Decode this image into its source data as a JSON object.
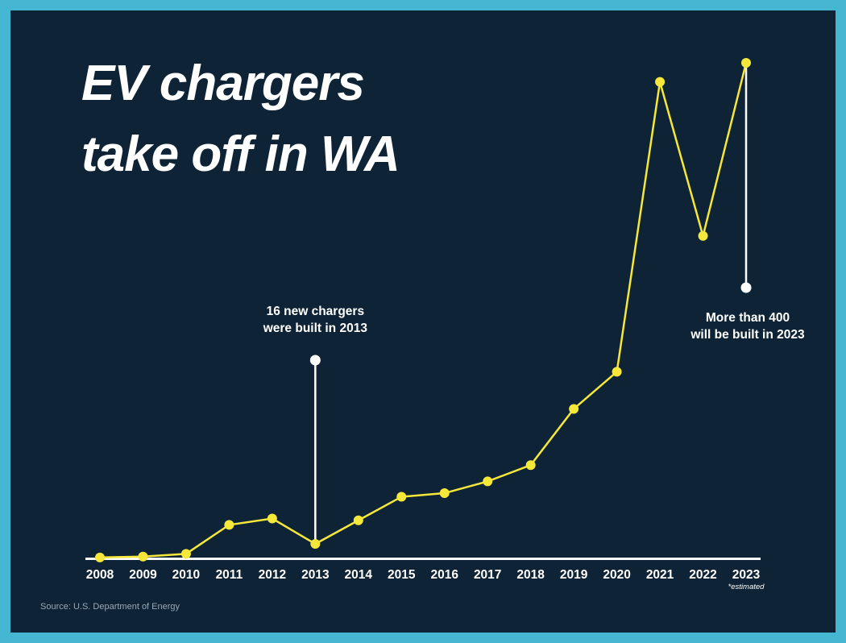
{
  "title": {
    "line1": "EV chargers",
    "line2": "take off in WA"
  },
  "annotations": [
    {
      "year": "2013",
      "line1": "16 new chargers",
      "line2": "were built in 2013",
      "side": "above"
    },
    {
      "year": "2023",
      "line1": "More than 400",
      "line2": "will be built in 2023",
      "side": "below"
    }
  ],
  "footnote": "*estimated",
  "source": "Source: U.S. Department of Energy",
  "colors": {
    "background": "#0e2336",
    "frame": "#45b7d3",
    "line": "#f6e83b",
    "marker": "#f6e83b",
    "annotation": "#ffffff",
    "text": "#ffffff"
  },
  "chart_data": {
    "type": "line",
    "categories": [
      "2008",
      "2009",
      "2010",
      "2011",
      "2012",
      "2013",
      "2014",
      "2015",
      "2016",
      "2017",
      "2018",
      "2019",
      "2020",
      "2021",
      "2022",
      "2023"
    ],
    "values": [
      1,
      2,
      5,
      37,
      44,
      16,
      42,
      68,
      72,
      85,
      103,
      165,
      206,
      526,
      356,
      547
    ],
    "title": "EV chargers take off in WA",
    "xlabel": "",
    "ylabel": "",
    "ylim": [
      0,
      560
    ],
    "grid": false,
    "legend": false,
    "markers": true,
    "notes": {
      "2013": "16 new chargers were built in 2013",
      "2023": "More than 400 will be built in 2023 (*estimated)"
    }
  }
}
